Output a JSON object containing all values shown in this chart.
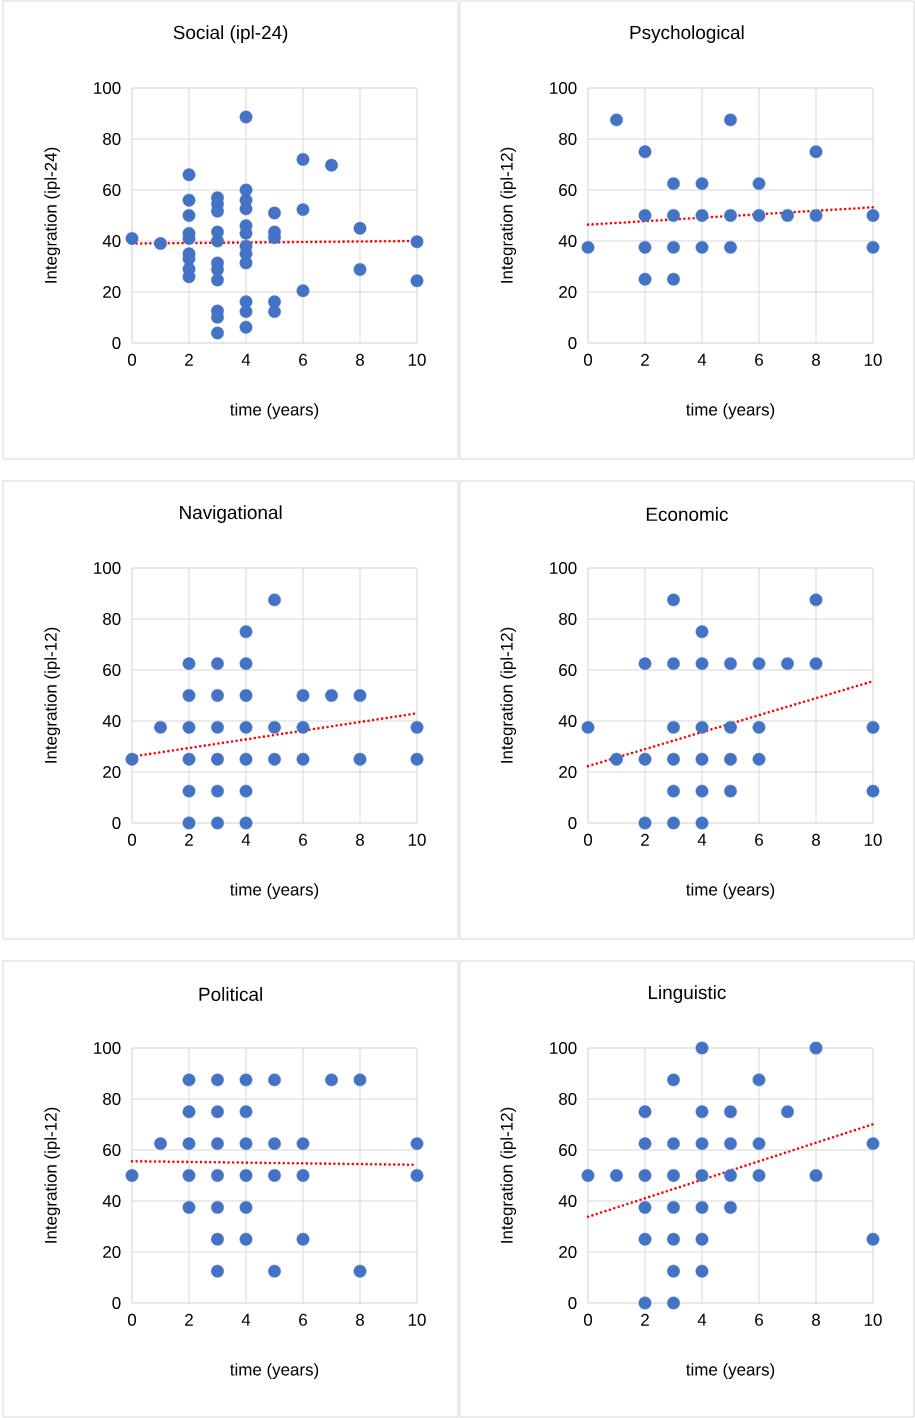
{
  "chart_data": [
    {
      "type": "scatter",
      "title": "Social (ipl-24)",
      "xlabel": "time (years)",
      "ylabel": "Integration (ipl-24)",
      "xlim": [
        0,
        10
      ],
      "ylim": [
        0,
        100
      ],
      "xticks": [
        0,
        2,
        4,
        6,
        8,
        10
      ],
      "yticks": [
        0,
        20,
        40,
        60,
        80,
        100
      ],
      "grid": true,
      "series": [
        {
          "color": "#4472c4",
          "marker": "circle",
          "x": [
            0,
            1,
            2,
            2,
            2,
            2,
            2,
            2,
            2,
            2,
            2,
            3,
            3,
            3,
            3,
            3,
            3,
            3,
            3,
            3,
            3,
            3,
            4,
            4,
            4,
            4,
            4,
            4,
            4,
            4,
            4,
            4,
            4,
            4,
            5,
            5,
            5,
            5,
            5,
            6,
            6,
            6,
            7,
            8,
            8,
            10,
            10
          ],
          "values": [
            41,
            39,
            66,
            56,
            50,
            43,
            41,
            35,
            33,
            29,
            26,
            57,
            54.5,
            51.7,
            43.5,
            40,
            31.4,
            28.8,
            24.7,
            12.6,
            10.1,
            3.9,
            88.6,
            60,
            56,
            52.6,
            46,
            43,
            38,
            35,
            31.4,
            16.2,
            12.3,
            6.2,
            51,
            43.5,
            41.3,
            16.2,
            12.3,
            72,
            52.3,
            20.5,
            69.7,
            45,
            28.8,
            39.7,
            24.4
          ]
        },
        {
          "type": "line",
          "color": "#ff0000",
          "marker": "none",
          "line_style": "dotted",
          "x": [
            0,
            10
          ],
          "values": [
            39,
            40
          ]
        }
      ]
    },
    {
      "type": "scatter",
      "title": "Psychological",
      "xlabel": "time (years)",
      "ylabel": "Integration (ipl-12)",
      "xlim": [
        0,
        10
      ],
      "ylim": [
        0,
        100
      ],
      "xticks": [
        0,
        2,
        4,
        6,
        8,
        10
      ],
      "yticks": [
        0,
        20,
        40,
        60,
        80,
        100
      ],
      "grid": true,
      "series": [
        {
          "color": "#4472c4",
          "marker": "circle",
          "x": [
            0,
            1,
            2,
            2,
            2,
            2,
            3,
            3,
            3,
            3,
            4,
            4,
            4,
            5,
            5,
            5,
            6,
            6,
            7,
            8,
            8,
            10,
            10
          ],
          "values": [
            37.5,
            87.5,
            75,
            50,
            37.5,
            25,
            62.5,
            50,
            37.5,
            25,
            62.5,
            50,
            37.5,
            87.5,
            50,
            37.5,
            62.5,
            50,
            50,
            75,
            50,
            50,
            37.5
          ]
        },
        {
          "type": "line",
          "color": "#ff0000",
          "marker": "none",
          "line_style": "dotted",
          "x": [
            0,
            10
          ],
          "values": [
            46.4,
            53.2
          ]
        }
      ]
    },
    {
      "type": "scatter",
      "title": "Navigational",
      "xlabel": "time (years)",
      "ylabel": "Integration (ipl-12)",
      "xlim": [
        0,
        10
      ],
      "ylim": [
        0,
        100
      ],
      "xticks": [
        0,
        2,
        4,
        6,
        8,
        10
      ],
      "yticks": [
        0,
        20,
        40,
        60,
        80,
        100
      ],
      "grid": true,
      "series": [
        {
          "color": "#4472c4",
          "marker": "circle",
          "x": [
            0,
            1,
            2,
            2,
            2,
            2,
            2,
            2,
            3,
            3,
            3,
            3,
            3,
            3,
            4,
            4,
            4,
            4,
            4,
            4,
            4,
            5,
            5,
            5,
            6,
            6,
            6,
            7,
            8,
            8,
            10,
            10
          ],
          "values": [
            25,
            37.5,
            62.5,
            50,
            37.5,
            25,
            12.5,
            0,
            62.5,
            50,
            37.5,
            25,
            12.5,
            0,
            75,
            62.5,
            50,
            37.5,
            25,
            12.5,
            0,
            87.5,
            37.5,
            25,
            50,
            37.5,
            25,
            50,
            50,
            25,
            37.5,
            25
          ]
        },
        {
          "type": "line",
          "color": "#ff0000",
          "marker": "none",
          "line_style": "dotted",
          "x": [
            0,
            10
          ],
          "values": [
            26,
            43
          ]
        }
      ]
    },
    {
      "type": "scatter",
      "title": "Economic",
      "xlabel": "time (years)",
      "ylabel": "Integration (ipl-12)",
      "xlim": [
        0,
        10
      ],
      "ylim": [
        0,
        100
      ],
      "xticks": [
        0,
        2,
        4,
        6,
        8,
        10
      ],
      "yticks": [
        0,
        20,
        40,
        60,
        80,
        100
      ],
      "grid": true,
      "series": [
        {
          "color": "#4472c4",
          "marker": "circle",
          "x": [
            0,
            1,
            2,
            2,
            2,
            3,
            3,
            3,
            3,
            3,
            3,
            4,
            4,
            4,
            4,
            4,
            4,
            5,
            5,
            5,
            5,
            6,
            6,
            6,
            7,
            8,
            8,
            10,
            10
          ],
          "values": [
            37.5,
            25,
            62.5,
            25,
            0,
            87.5,
            62.5,
            37.5,
            25,
            12.5,
            0,
            75,
            62.5,
            37.5,
            25,
            12.5,
            0,
            62.5,
            37.5,
            25,
            12.5,
            62.5,
            37.5,
            25,
            62.5,
            87.5,
            62.5,
            37.5,
            12.5
          ]
        },
        {
          "type": "line",
          "color": "#ff0000",
          "marker": "none",
          "line_style": "dotted",
          "x": [
            0,
            10
          ],
          "values": [
            22.3,
            55.6
          ]
        }
      ]
    },
    {
      "type": "scatter",
      "title": "Political",
      "xlabel": "time (years)",
      "ylabel": "Integration (ipl-12)",
      "xlim": [
        0,
        10
      ],
      "ylim": [
        0,
        100
      ],
      "xticks": [
        0,
        2,
        4,
        6,
        8,
        10
      ],
      "yticks": [
        0,
        20,
        40,
        60,
        80,
        100
      ],
      "grid": true,
      "series": [
        {
          "color": "#4472c4",
          "marker": "circle",
          "x": [
            0,
            1,
            2,
            2,
            2,
            2,
            2,
            3,
            3,
            3,
            3,
            3,
            3,
            3,
            4,
            4,
            4,
            4,
            4,
            4,
            5,
            5,
            5,
            5,
            6,
            6,
            6,
            7,
            8,
            8,
            10,
            10
          ],
          "values": [
            50,
            62.5,
            87.5,
            75,
            62.5,
            50,
            37.5,
            87.5,
            75,
            62.5,
            50,
            37.5,
            25,
            12.5,
            87.5,
            75,
            62.5,
            50,
            37.5,
            25,
            87.5,
            62.5,
            50,
            12.5,
            62.5,
            50,
            25,
            87.5,
            87.5,
            12.5,
            62.5,
            50
          ]
        },
        {
          "type": "line",
          "color": "#ff0000",
          "marker": "none",
          "line_style": "dotted",
          "x": [
            0,
            10
          ],
          "values": [
            55.6,
            54.2
          ]
        }
      ]
    },
    {
      "type": "scatter",
      "title": "Linguistic",
      "xlabel": "time (years)",
      "ylabel": "Integration (ipl-12)",
      "xlim": [
        0,
        10
      ],
      "ylim": [
        0,
        100
      ],
      "xticks": [
        0,
        2,
        4,
        6,
        8,
        10
      ],
      "yticks": [
        0,
        20,
        40,
        60,
        80,
        100
      ],
      "grid": true,
      "series": [
        {
          "color": "#4472c4",
          "marker": "circle",
          "x": [
            0,
            1,
            2,
            2,
            2,
            2,
            2,
            2,
            3,
            3,
            3,
            3,
            3,
            3,
            3,
            4,
            4,
            4,
            4,
            4,
            4,
            4,
            5,
            5,
            5,
            5,
            6,
            6,
            6,
            7,
            8,
            8,
            10,
            10
          ],
          "values": [
            50,
            50,
            75,
            62.5,
            50,
            37.5,
            25,
            0,
            87.5,
            62.5,
            50,
            37.5,
            25,
            12.5,
            0,
            100,
            75,
            62.5,
            50,
            37.5,
            25,
            12.5,
            75,
            62.5,
            50,
            37.5,
            87.5,
            62.5,
            50,
            75,
            100,
            50,
            62.5,
            25
          ]
        },
        {
          "type": "line",
          "color": "#ff0000",
          "marker": "none",
          "line_style": "dotted",
          "x": [
            0,
            10
          ],
          "values": [
            33.8,
            70.1
          ]
        }
      ]
    }
  ]
}
